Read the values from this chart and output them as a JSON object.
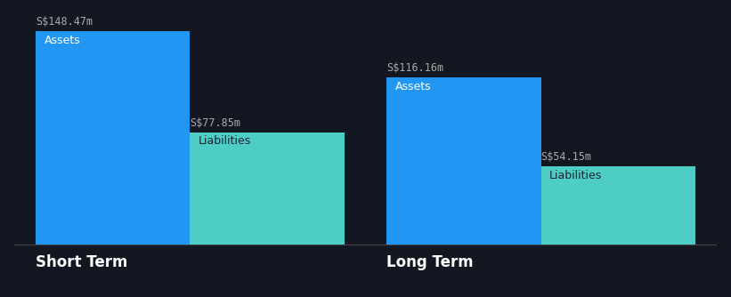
{
  "background_color": "#131722",
  "groups": [
    {
      "label": "Short Term",
      "assets_value": 148.47,
      "liabilities_value": 77.85,
      "assets_label": "S$148.47m",
      "liabilities_label": "S$77.85m",
      "assets_color": "#2196F3",
      "liabilities_color": "#4ECDC4"
    },
    {
      "label": "Long Term",
      "assets_value": 116.16,
      "liabilities_value": 54.15,
      "assets_label": "S$116.16m",
      "liabilities_label": "S$54.15m",
      "assets_color": "#2196F3",
      "liabilities_color": "#4ECDC4"
    }
  ],
  "bar_label_assets": "Assets",
  "bar_label_liabilities": "Liabilities",
  "text_color": "#FFFFFF",
  "value_label_color": "#AAAAAA",
  "axis_line_color": "#444444",
  "ylim": [
    0,
    160
  ],
  "value_fontsize": 8.5,
  "bar_inner_label_fontsize": 9,
  "group_label_fontsize": 12,
  "group_label_color": "#FFFFFF",
  "liabilities_label_color": "#1a2535"
}
